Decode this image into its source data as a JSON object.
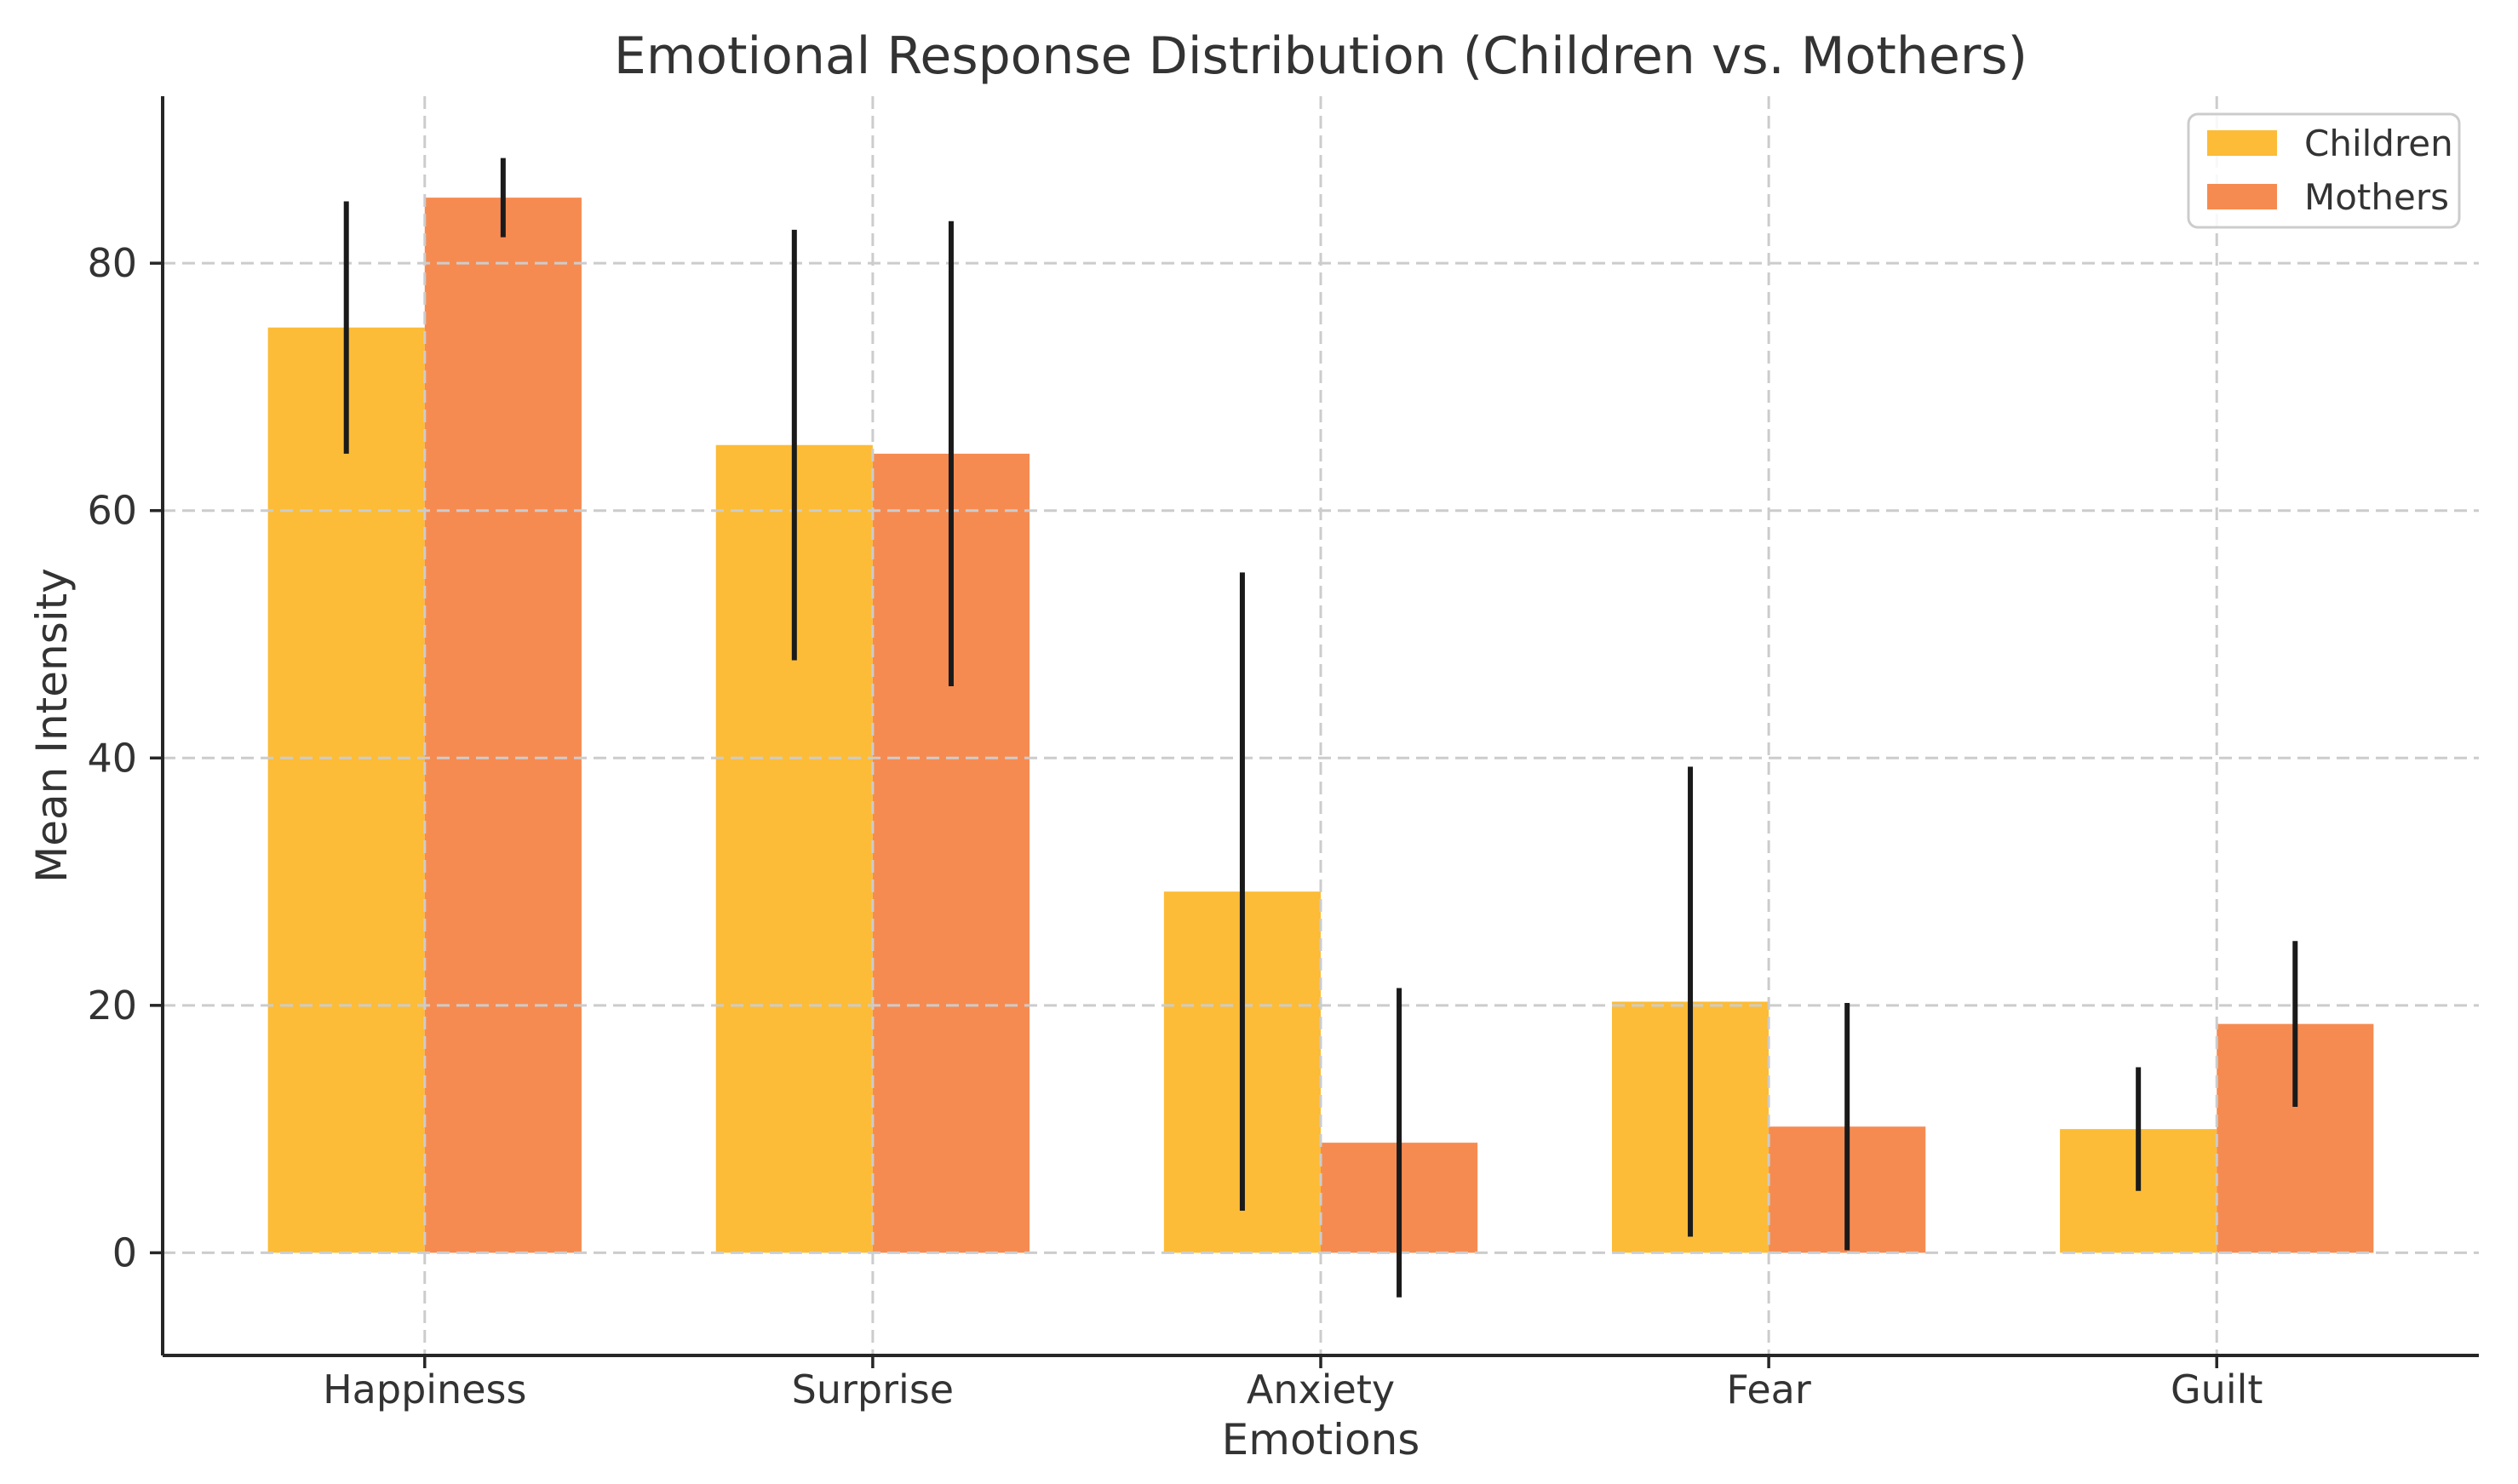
{
  "chart_data": {
    "type": "bar",
    "title": "Emotional Response Distribution (Children vs. Mothers)",
    "xlabel": "Emotions",
    "ylabel": "Mean Intensity",
    "categories": [
      "Happiness",
      "Surprise",
      "Anxiety",
      "Fear",
      "Guilt"
    ],
    "series": [
      {
        "name": "Children",
        "color": "#FCBC37",
        "values": [
          74.8,
          65.3,
          29.2,
          20.3,
          10.0
        ],
        "errors": [
          10.2,
          17.4,
          25.8,
          19.0,
          5.0
        ]
      },
      {
        "name": "Mothers",
        "color": "#F68B51",
        "values": [
          85.3,
          64.6,
          8.9,
          10.2,
          18.5
        ],
        "errors": [
          3.2,
          18.8,
          12.5,
          10.0,
          6.7
        ]
      }
    ],
    "yticks": [
      0,
      20,
      40,
      60,
      80
    ],
    "ylim": [
      -8.3,
      93.5
    ],
    "grid": true,
    "grid_style": "dashed",
    "grid_color": "#cccccc",
    "axis_color": "#262626",
    "error_bar_color": "#1a1a1a",
    "text_color": "#333333",
    "legend_position": "upper right",
    "bar_width_fraction": 0.35
  }
}
